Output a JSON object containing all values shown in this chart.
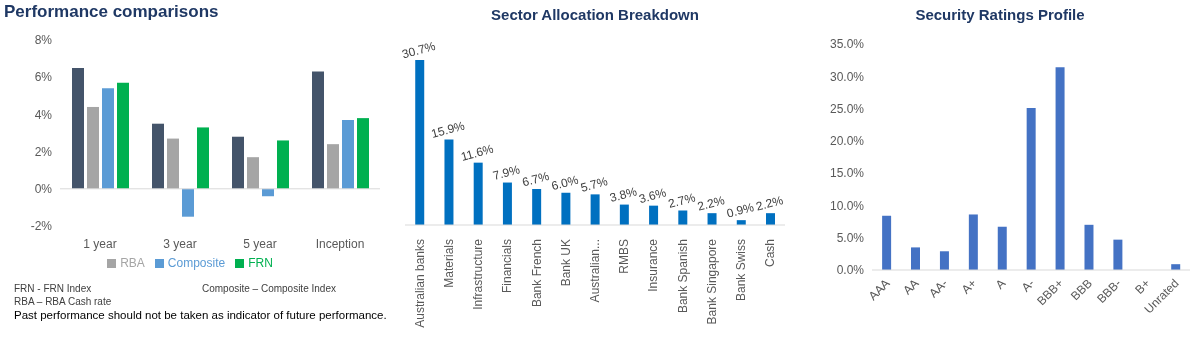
{
  "chart_data": [
    {
      "type": "bar",
      "title": "Performance comparisons",
      "categories": [
        "1 year",
        "3 year",
        "5 year",
        "Inception"
      ],
      "series": [
        {
          "color": "#44546a",
          "values": [
            6.5,
            3.5,
            2.8,
            6.3
          ]
        },
        {
          "name": "RBA",
          "color": "#a5a5a5",
          "values": [
            4.4,
            2.7,
            1.7,
            2.4
          ]
        },
        {
          "name": "Composite",
          "color": "#5b9bd5",
          "values": [
            5.4,
            -1.5,
            -0.4,
            3.7
          ]
        },
        {
          "name": "FRN",
          "color": "#00b050",
          "values": [
            5.7,
            3.3,
            2.6,
            3.8
          ]
        }
      ],
      "ylim": [
        -2,
        8
      ],
      "yticks": [
        {
          "value": -2,
          "label": "-2%"
        },
        {
          "value": 0,
          "label": "0%"
        },
        {
          "value": 2,
          "label": "2%"
        },
        {
          "value": 4,
          "label": "4%"
        },
        {
          "value": 6,
          "label": "6%"
        },
        {
          "value": 8,
          "label": "8%"
        }
      ],
      "legend": "bottom",
      "annotations": [
        "FRN - FRN Index",
        "Composite – Composite Index",
        "RBA – RBA Cash rate",
        "Past performance should not be taken as indicator of future performance."
      ]
    },
    {
      "type": "bar",
      "title": "Sector Allocation Breakdown",
      "tick_labels": "x",
      "categories": [
        "Australian banks",
        "Materials",
        "Infrastructure",
        "Financials",
        "Bank French",
        "Bank UK",
        "Australian...",
        "RMBS",
        "Insurance",
        "Bank Spanish",
        "Bank Singapore",
        "Bank Swiss",
        "Cash"
      ],
      "values": [
        30.7,
        15.9,
        11.6,
        7.9,
        6.7,
        6.0,
        5.7,
        3.8,
        3.6,
        2.7,
        2.2,
        0.9,
        2.2
      ],
      "value_labels": [
        "30.7%",
        "15.9%",
        "11.6%",
        "7.9%",
        "6.7%",
        "6.0%",
        "5.7%",
        "3.8%",
        "3.6%",
        "2.7%",
        "2.2%",
        "0.9%",
        "2.2%"
      ],
      "color": "#0070c0"
    },
    {
      "type": "bar",
      "title": "Security Ratings Profile",
      "categories": [
        "AAA",
        "AA",
        "AA-",
        "A+",
        "A",
        "A-",
        "BBB+",
        "BBB",
        "BBB-",
        "B+",
        "Unrated"
      ],
      "values": [
        8.4,
        3.5,
        2.9,
        8.6,
        6.7,
        25.1,
        31.4,
        7.0,
        4.7,
        0,
        0.9
      ],
      "color": "#4472c4",
      "ylim": [
        0,
        35
      ],
      "yticks": [
        {
          "value": 0,
          "label": "0.0%"
        },
        {
          "value": 5,
          "label": "5.0%"
        },
        {
          "value": 10,
          "label": "10.0%"
        },
        {
          "value": 15,
          "label": "15.0%"
        },
        {
          "value": 20,
          "label": "20.0%"
        },
        {
          "value": 25,
          "label": "25.0%"
        },
        {
          "value": 30,
          "label": "30.0%"
        },
        {
          "value": 35,
          "label": "35.0%"
        }
      ]
    }
  ]
}
